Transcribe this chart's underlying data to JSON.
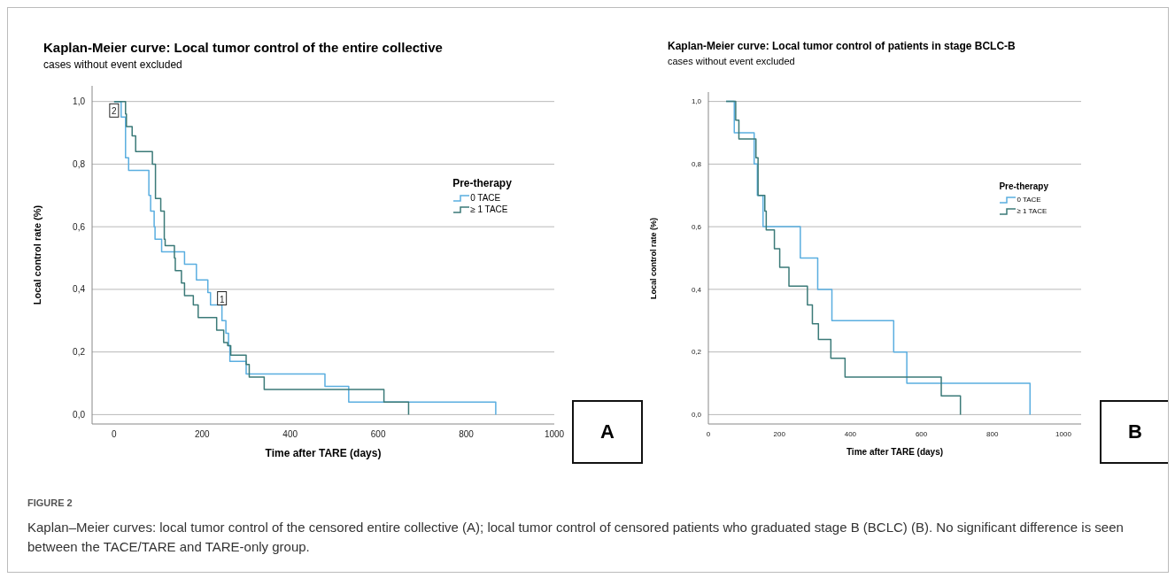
{
  "chart_data": [
    {
      "type": "step",
      "title": "Kaplan-Meier curve: Local tumor control of the entire collective",
      "subtitle": "cases without event excluded",
      "xlabel": "Time after TARE (days)",
      "ylabel": "Local control rate (%)",
      "legend_title": "Pre-therapy",
      "legend": "right",
      "grid": "y",
      "marker": "none",
      "line_style": "solid",
      "xlim": [
        -50,
        1000
      ],
      "xticks": [
        0,
        200,
        400,
        600,
        800,
        1000
      ],
      "ylim": [
        -0.03,
        1.05
      ],
      "yticks": [
        {
          "value": 0,
          "label": "0,0"
        },
        {
          "value": 0.2,
          "label": "0,2"
        },
        {
          "value": 0.4,
          "label": "0,4"
        },
        {
          "value": 0.6,
          "label": "0,6"
        },
        {
          "value": 0.8,
          "label": "0,8"
        },
        {
          "value": 1,
          "label": "1,0"
        }
      ],
      "series": [
        {
          "name": "0 TACE",
          "color": "#5aaee0",
          "x": [
            0,
            16,
            26,
            33,
            79,
            83,
            91,
            93,
            108,
            160,
            187,
            213,
            219,
            245,
            254,
            260,
            263,
            300,
            479,
            533,
            867
          ],
          "values": [
            1,
            0.95,
            0.82,
            0.78,
            0.7,
            0.65,
            0.6,
            0.56,
            0.52,
            0.48,
            0.43,
            0.39,
            0.35,
            0.3,
            0.26,
            0.22,
            0.17,
            0.13,
            0.09,
            0.04,
            0
          ]
        },
        {
          "name": "≥ 1 TACE",
          "color": "#3b7a78",
          "x": [
            0,
            26,
            28,
            41,
            49,
            87,
            94,
            106,
            114,
            116,
            137,
            139,
            153,
            160,
            180,
            191,
            233,
            249,
            258,
            265,
            300,
            307,
            341,
            613,
            669
          ],
          "values": [
            1,
            0.96,
            0.92,
            0.89,
            0.84,
            0.8,
            0.69,
            0.65,
            0.56,
            0.54,
            0.5,
            0.46,
            0.42,
            0.38,
            0.35,
            0.31,
            0.27,
            0.23,
            0.22,
            0.19,
            0.16,
            0.12,
            0.08,
            0.04,
            0
          ]
        }
      ],
      "annotations": [
        {
          "text": "2",
          "x": 0,
          "y": 0.97
        },
        {
          "text": "1",
          "x": 245,
          "y": 0.37
        },
        "A",
        "FIGURE 2",
        "Kaplan–Meier curves: local tumor control of the censored entire collective (A); local tumor control of censored patients who graduated stage B (BCLC) (B). No significant difference is seen between the TACE/TARE and TARE-only group."
      ]
    },
    {
      "type": "step",
      "title": "Kaplan-Meier curve: Local tumor control of patients in stage BCLC-B",
      "subtitle": "cases without event excluded",
      "xlabel": "Time after TARE (days)",
      "ylabel": "Local control rate (%)",
      "legend_title": "Pre-therapy",
      "legend": "right",
      "grid": "y",
      "marker": "none",
      "line_style": "solid",
      "xlim": [
        0,
        1050
      ],
      "xticks": [
        0,
        200,
        400,
        600,
        800,
        1000
      ],
      "ylim": [
        -0.03,
        1.03
      ],
      "yticks": [
        {
          "value": 0,
          "label": "0,0"
        },
        {
          "value": 0.2,
          "label": "0,2"
        },
        {
          "value": 0.4,
          "label": "0,4"
        },
        {
          "value": 0.6,
          "label": "0,6"
        },
        {
          "value": 0.8,
          "label": "0,8"
        },
        {
          "value": 1,
          "label": "1,0"
        }
      ],
      "series": [
        {
          "name": "0 TACE",
          "color": "#5aaee0",
          "x": [
            50,
            73,
            129,
            138,
            154,
            259,
            308,
            348,
            522,
            559,
            906
          ],
          "values": [
            1,
            0.9,
            0.8,
            0.7,
            0.6,
            0.5,
            0.4,
            0.3,
            0.2,
            0.1,
            0
          ]
        },
        {
          "name": "≥ 1 TACE",
          "color": "#3b7a78",
          "x": [
            50,
            77,
            86,
            134,
            140,
            159,
            163,
            186,
            201,
            227,
            279,
            293,
            310,
            345,
            385,
            656,
            710
          ],
          "values": [
            1,
            0.94,
            0.88,
            0.82,
            0.7,
            0.65,
            0.59,
            0.53,
            0.47,
            0.41,
            0.35,
            0.29,
            0.24,
            0.18,
            0.12,
            0.06,
            0
          ]
        }
      ],
      "annotations": [
        "B"
      ]
    }
  ]
}
